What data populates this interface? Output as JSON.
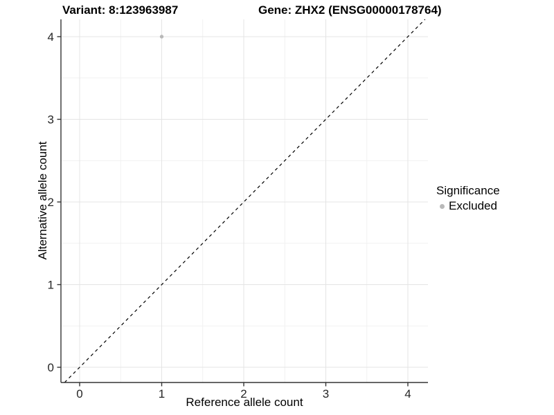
{
  "chart_data": {
    "type": "scatter",
    "titles": {
      "left": "Variant: 8:123963987",
      "right": "Gene: ZHX2 (ENSG00000178764)"
    },
    "xlabel": "Reference allele count",
    "ylabel": "Alternative allele count",
    "xlim": [
      -0.228,
      4.245
    ],
    "ylim": [
      -0.184,
      4.209
    ],
    "xticks": [
      0,
      1,
      2,
      3,
      4
    ],
    "yticks": [
      0,
      1,
      2,
      3,
      4
    ],
    "minor_xticks": [
      0.5,
      1.5,
      2.5,
      3.5
    ],
    "minor_yticks": [
      0.5,
      1.5,
      2.5,
      3.5
    ],
    "grid": "major+minor",
    "points": [
      {
        "x": 1,
        "y": 4,
        "series": "Excluded"
      }
    ],
    "identity_line": {
      "slope": 1,
      "intercept": 0,
      "style": "dashed",
      "color": "#000000"
    },
    "legend": {
      "title": "Significance",
      "position": "right",
      "entries": [
        {
          "label": "Excluded",
          "color": "#b9b9b9"
        }
      ]
    },
    "colors": {
      "background": "#ffffff",
      "major_grid": "#e4e4e4",
      "minor_grid": "#f1f1f1",
      "axis_line": "#333333",
      "tick_mark": "#333333",
      "tick_text": "#262626",
      "point": "#b9b9b9"
    }
  }
}
